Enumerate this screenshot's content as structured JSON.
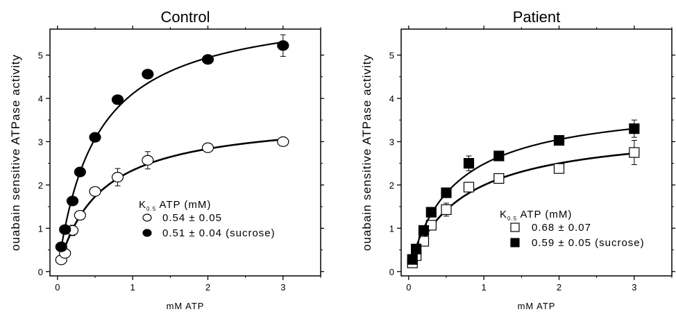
{
  "chart_data": [
    {
      "type": "scatter",
      "title": "Control",
      "xlabel": "mM ATP",
      "ylabel": "ouabain sensitive ATPase activity",
      "xlim": [
        -0.1,
        3.5
      ],
      "ylim": [
        -0.1,
        5.6
      ],
      "xticks": [
        0,
        1,
        2,
        3
      ],
      "yticks": [
        0,
        1,
        2,
        3,
        4,
        5
      ],
      "grid": false,
      "marker": "circle",
      "legend": {
        "title_main": "K",
        "title_sub": "0.5",
        "title_rest": " ATP (mM)",
        "placement": "lower-right",
        "entries": [
          "0.54 ± 0.05",
          "0.51 ± 0.04 (sucrose)"
        ]
      },
      "series": [
        {
          "label": "0.54 ± 0.05",
          "filled": false,
          "fit": {
            "vmax": 3.6,
            "k": 0.54
          },
          "x": [
            0.05,
            0.1,
            0.2,
            0.3,
            0.5,
            0.8,
            1.2,
            2.0,
            3.0
          ],
          "y": [
            0.27,
            0.42,
            0.95,
            1.3,
            1.85,
            2.18,
            2.57,
            2.86,
            3.0
          ],
          "err": [
            0,
            0,
            0.12,
            0,
            0,
            0.2,
            0.2,
            0,
            0
          ]
        },
        {
          "label": "0.51 ± 0.04 (sucrose)",
          "filled": true,
          "fit": {
            "vmax": 6.2,
            "k": 0.51
          },
          "x": [
            0.05,
            0.1,
            0.2,
            0.3,
            0.5,
            0.8,
            1.2,
            2.0,
            3.0
          ],
          "y": [
            0.57,
            0.97,
            1.63,
            2.3,
            3.1,
            3.97,
            4.56,
            4.9,
            5.22
          ],
          "err": [
            0,
            0,
            0,
            0,
            0,
            0,
            0,
            0,
            0.25
          ]
        }
      ]
    },
    {
      "type": "scatter",
      "title": "Patient",
      "xlabel": "mM ATP",
      "ylabel": "ouabain sensitive ATPase activity",
      "xlim": [
        -0.1,
        3.5
      ],
      "ylim": [
        -0.1,
        5.6
      ],
      "xticks": [
        0,
        1,
        2,
        3
      ],
      "yticks": [
        0,
        1,
        2,
        3,
        4,
        5
      ],
      "grid": false,
      "marker": "square",
      "legend": {
        "title_main": "K",
        "title_sub": "0.5",
        "title_rest": " ATP (mM)",
        "placement": "lower-right",
        "entries": [
          "0.68 ± 0.07",
          "0.59 ± 0.05 (sucrose)"
        ]
      },
      "series": [
        {
          "label": "0.68 ± 0.07",
          "filled": false,
          "fit": {
            "vmax": 3.35,
            "k": 0.68
          },
          "x": [
            0.05,
            0.1,
            0.2,
            0.3,
            0.5,
            0.8,
            1.2,
            2.0,
            3.0
          ],
          "y": [
            0.2,
            0.37,
            0.7,
            1.07,
            1.43,
            1.95,
            2.15,
            2.38,
            2.75
          ],
          "err": [
            0,
            0,
            0,
            0.1,
            0.15,
            0,
            0,
            0,
            0.28
          ]
        },
        {
          "label": "0.59 ± 0.05 (sucrose)",
          "filled": true,
          "fit": {
            "vmax": 3.95,
            "k": 0.59
          },
          "x": [
            0.05,
            0.1,
            0.2,
            0.3,
            0.5,
            0.8,
            1.2,
            2.0,
            3.0
          ],
          "y": [
            0.28,
            0.52,
            0.95,
            1.37,
            1.82,
            2.5,
            2.67,
            3.03,
            3.3
          ],
          "err": [
            0,
            0,
            0,
            0.1,
            0,
            0.17,
            0,
            0,
            0.2
          ]
        }
      ]
    }
  ]
}
